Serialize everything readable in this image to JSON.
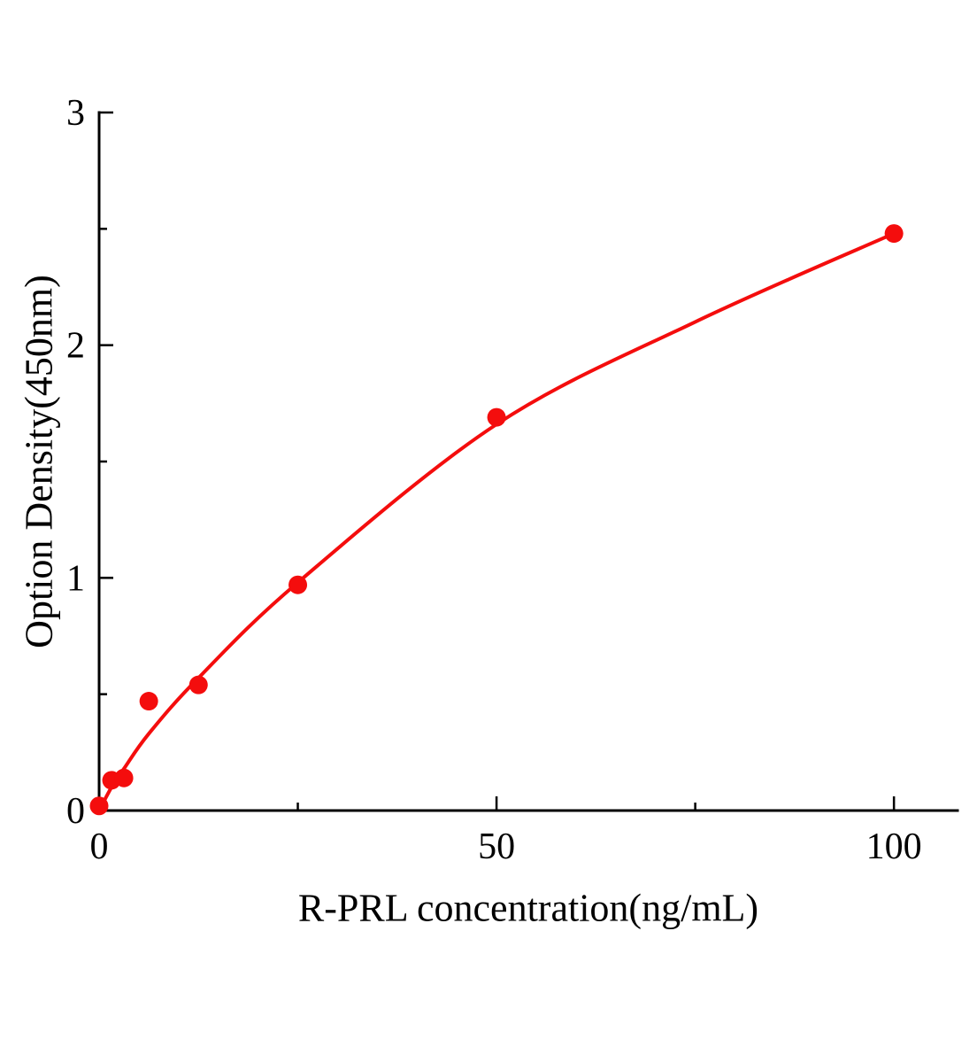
{
  "chart_data": {
    "type": "scatter",
    "title": "",
    "xlabel": "R-PRL concentration(ng/mL)",
    "ylabel": "Option Density(450nm)",
    "xlim": [
      0,
      108
    ],
    "ylim": [
      0,
      3
    ],
    "x_major_ticks": [
      0,
      50,
      100
    ],
    "x_minor_ticks": [
      25,
      75
    ],
    "y_major_ticks": [
      0,
      1,
      2,
      3
    ],
    "y_minor_ticks": [
      0.5,
      1.5,
      2.5
    ],
    "grid": "off",
    "legend": "none",
    "points": [
      [
        0,
        0.02
      ],
      [
        1.563,
        0.13
      ],
      [
        3.125,
        0.14
      ],
      [
        6.25,
        0.47
      ],
      [
        12.5,
        0.54
      ],
      [
        25,
        0.97
      ],
      [
        50,
        1.69
      ],
      [
        100,
        2.48
      ]
    ],
    "curve": [
      [
        0,
        0.0
      ],
      [
        1.563,
        0.1
      ],
      [
        3.125,
        0.18
      ],
      [
        6.25,
        0.33
      ],
      [
        12.5,
        0.57
      ],
      [
        25,
        0.98
      ],
      [
        50,
        1.66
      ],
      [
        75,
        2.1
      ],
      [
        100,
        2.48
      ]
    ],
    "colors": {
      "series": "#f40d0d",
      "axis": "#000000",
      "background": "#ffffff"
    }
  }
}
